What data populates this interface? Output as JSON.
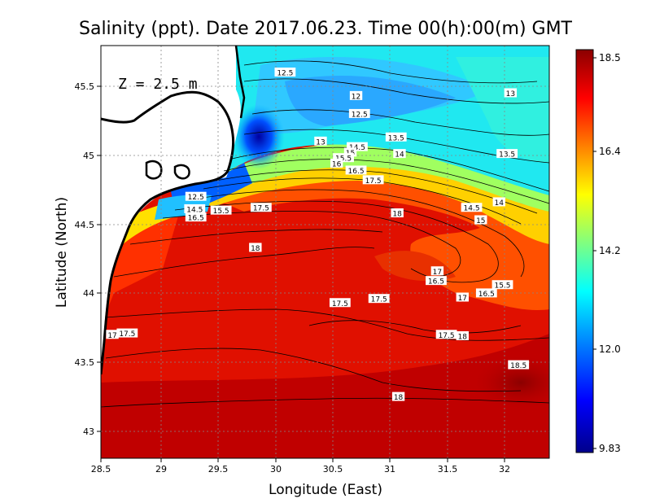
{
  "title": "Salinity (ppt). Date 2017.06.23. Time 00(h):00(m) GMT",
  "depth_label": "Z = 2.5 m",
  "x_axis_label": "Longitude (East)",
  "y_axis_label": "Latitude (North)",
  "x_ticks": [
    "28.5",
    "29",
    "29.5",
    "30",
    "30.5",
    "31",
    "31.5",
    "32"
  ],
  "y_ticks": [
    "45.5",
    "45",
    "44.5",
    "44",
    "43.5",
    "43"
  ],
  "colorbar": {
    "ticks": [
      "18.5",
      "16.4",
      "14.2",
      "12.0",
      "9.83"
    ],
    "min": 9.83,
    "max": 18.5,
    "colors": [
      "#00008b",
      "#0000ff",
      "#0080ff",
      "#00ffff",
      "#80ff80",
      "#ffff00",
      "#ff8000",
      "#ff0000",
      "#8b0000"
    ]
  },
  "contour_labels": [
    {
      "text": "12.5",
      "lon": 30.11,
      "lat": 45.6
    },
    {
      "text": "12",
      "lon": 30.73,
      "lat": 45.43
    },
    {
      "text": "13",
      "lon": 32.08,
      "lat": 45.45
    },
    {
      "text": "12.5",
      "lon": 30.76,
      "lat": 45.3
    },
    {
      "text": "13",
      "lon": 30.42,
      "lat": 45.1
    },
    {
      "text": "13.5",
      "lon": 31.08,
      "lat": 45.13
    },
    {
      "text": "14.5",
      "lon": 30.74,
      "lat": 45.06
    },
    {
      "text": "15",
      "lon": 30.68,
      "lat": 45.02
    },
    {
      "text": "14",
      "lon": 31.11,
      "lat": 45.01
    },
    {
      "text": "13.5",
      "lon": 32.05,
      "lat": 45.01
    },
    {
      "text": "15.5",
      "lon": 30.62,
      "lat": 44.98
    },
    {
      "text": "16",
      "lon": 30.56,
      "lat": 44.94
    },
    {
      "text": "16.5",
      "lon": 30.73,
      "lat": 44.89
    },
    {
      "text": "17.5",
      "lon": 30.88,
      "lat": 44.82
    },
    {
      "text": "12.5",
      "lon": 29.33,
      "lat": 44.7
    },
    {
      "text": "14.5",
      "lon": 29.32,
      "lat": 44.61
    },
    {
      "text": "15.5",
      "lon": 29.55,
      "lat": 44.6
    },
    {
      "text": "17.5",
      "lon": 29.9,
      "lat": 44.62
    },
    {
      "text": "16.5",
      "lon": 29.33,
      "lat": 44.55
    },
    {
      "text": "18",
      "lon": 31.09,
      "lat": 44.58
    },
    {
      "text": "14.5",
      "lon": 31.74,
      "lat": 44.62
    },
    {
      "text": "14",
      "lon": 31.98,
      "lat": 44.66
    },
    {
      "text": "15",
      "lon": 31.82,
      "lat": 44.53
    },
    {
      "text": "18",
      "lon": 29.85,
      "lat": 44.33
    },
    {
      "text": "17",
      "lon": 31.44,
      "lat": 44.16
    },
    {
      "text": "16.5",
      "lon": 31.43,
      "lat": 44.09
    },
    {
      "text": "15.5",
      "lon": 32.01,
      "lat": 44.06
    },
    {
      "text": "16.5",
      "lon": 31.87,
      "lat": 44.0
    },
    {
      "text": "17",
      "lon": 31.66,
      "lat": 43.97
    },
    {
      "text": "17.5",
      "lon": 30.93,
      "lat": 43.96
    },
    {
      "text": "17.5",
      "lon": 30.59,
      "lat": 43.93
    },
    {
      "text": "17.5",
      "lon": 28.73,
      "lat": 43.71
    },
    {
      "text": "17",
      "lon": 28.6,
      "lat": 43.7
    },
    {
      "text": "17.5",
      "lon": 31.52,
      "lat": 43.7
    },
    {
      "text": "18",
      "lon": 31.66,
      "lat": 43.69
    },
    {
      "text": "18.5",
      "lon": 32.15,
      "lat": 43.48
    },
    {
      "text": "18",
      "lon": 31.1,
      "lat": 43.25
    }
  ]
}
